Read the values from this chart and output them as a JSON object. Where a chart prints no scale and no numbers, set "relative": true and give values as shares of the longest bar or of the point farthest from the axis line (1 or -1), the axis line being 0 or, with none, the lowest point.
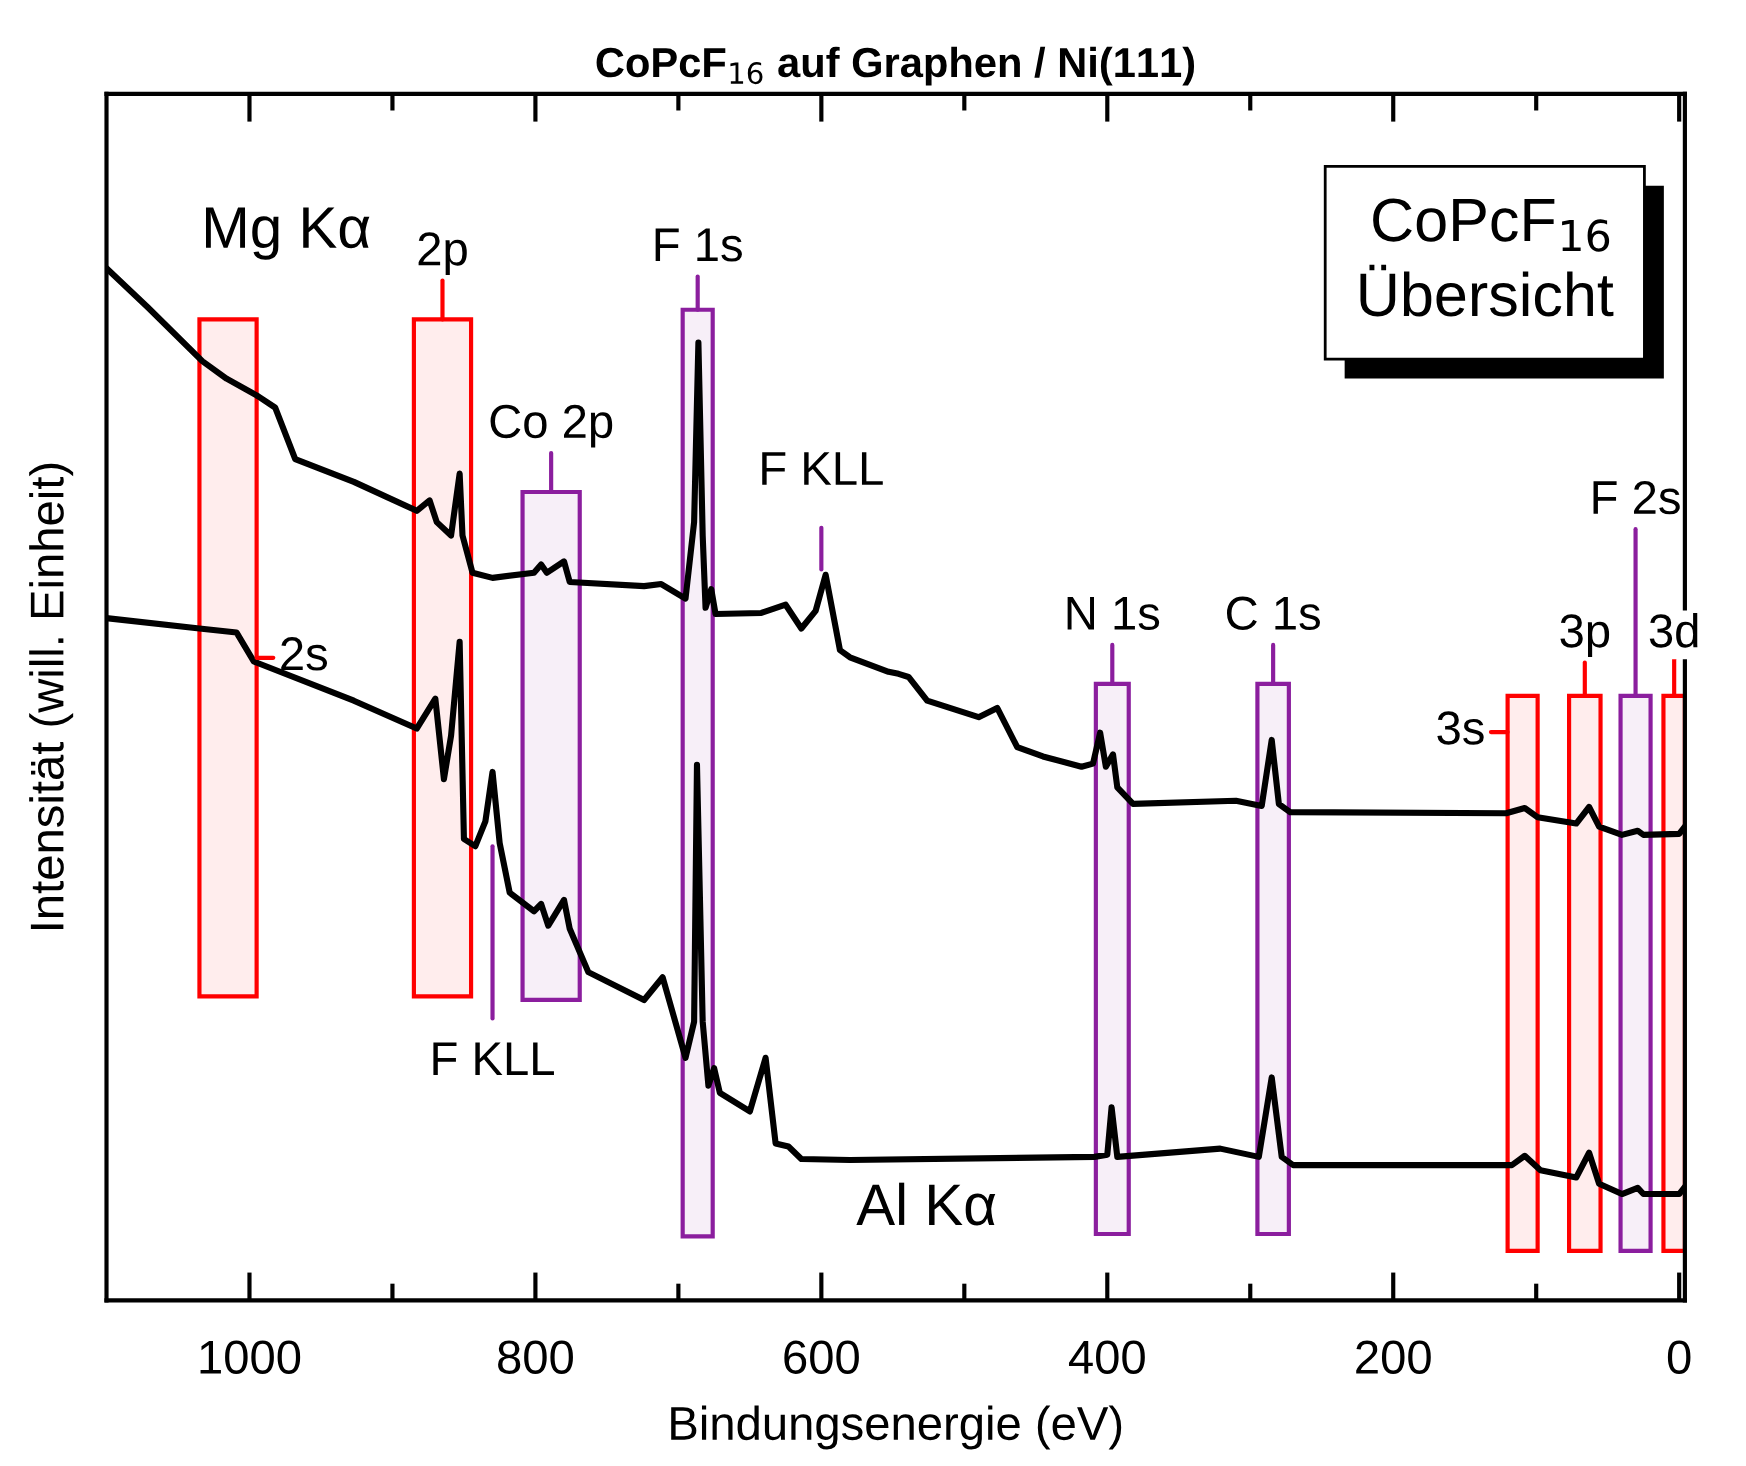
{
  "chart_data": {
    "type": "line",
    "title": "CoPcF$_{16}$ auf Graphen / Ni(111)",
    "xlabel": "Bindungsenergie (eV)",
    "ylabel": "Intensität (will. Einheit)",
    "relative": true,
    "legend": false,
    "grid": false,
    "marker": "none",
    "line_style": "solid",
    "xlim": [
      1100,
      -4
    ],
    "xticks": [
      1000,
      {
        "value": 900,
        "label": null
      },
      800,
      {
        "value": 700,
        "label": null
      },
      600,
      {
        "value": 500,
        "label": null
      },
      400,
      {
        "value": 300,
        "label": null
      },
      200,
      {
        "value": 100,
        "label": null
      },
      0
    ],
    "series": [
      {
        "name": "Mg Kα",
        "color": "#000000",
        "x": [
          1100,
          1071,
          1033,
          1016,
          994,
          982,
          968,
          927,
          883,
          874,
          869,
          859,
          853,
          851,
          844,
          830,
          801,
          796,
          792,
          780,
          776,
          724,
          712,
          695,
          689,
          686,
          683,
          681,
          677,
          674,
          642,
          625,
          614,
          604,
          597,
          587,
          580,
          553,
          546,
          539,
          526,
          490,
          477,
          463,
          445,
          418,
          410,
          405,
          401,
          396,
          393,
          382,
          310,
          292,
          285,
          280,
          272,
          121,
          108,
          99,
          72,
          63,
          56,
          40,
          29,
          25,
          0,
          -4
        ],
        "values": [
          1.0,
          0.962,
          0.91,
          0.893,
          0.876,
          0.865,
          0.815,
          0.793,
          0.765,
          0.775,
          0.754,
          0.741,
          0.801,
          0.741,
          0.705,
          0.7,
          0.705,
          0.713,
          0.705,
          0.716,
          0.696,
          0.692,
          0.694,
          0.68,
          0.754,
          0.928,
          0.741,
          0.671,
          0.689,
          0.665,
          0.666,
          0.674,
          0.651,
          0.668,
          0.703,
          0.63,
          0.623,
          0.609,
          0.607,
          0.604,
          0.581,
          0.565,
          0.574,
          0.536,
          0.527,
          0.517,
          0.52,
          0.55,
          0.517,
          0.529,
          0.497,
          0.481,
          0.484,
          0.479,
          0.543,
          0.481,
          0.473,
          0.472,
          0.477,
          0.468,
          0.462,
          0.478,
          0.459,
          0.451,
          0.455,
          0.451,
          0.452,
          0.459
        ]
      },
      {
        "name": "Al Kα",
        "color": "#000000",
        "x": [
          1100,
          1035,
          1009,
          997,
          927,
          883,
          870,
          864,
          859,
          853,
          850,
          842,
          835,
          830,
          825,
          818,
          801,
          796,
          791,
          780,
          776,
          763,
          724,
          711,
          695,
          689,
          687,
          683,
          679,
          675,
          671,
          650,
          639,
          632,
          623,
          614,
          580,
          409,
          400,
          397,
          393,
          321,
          294,
          285,
          278,
          270,
          117,
          108,
          97,
          72,
          63,
          56,
          40,
          29,
          25,
          0,
          -4
        ],
        "values": [
          0.661,
          0.651,
          0.647,
          0.619,
          0.581,
          0.554,
          0.583,
          0.505,
          0.547,
          0.638,
          0.447,
          0.44,
          0.464,
          0.512,
          0.443,
          0.395,
          0.377,
          0.384,
          0.363,
          0.388,
          0.36,
          0.318,
          0.291,
          0.313,
          0.235,
          0.27,
          0.519,
          0.27,
          0.208,
          0.225,
          0.201,
          0.183,
          0.235,
          0.152,
          0.149,
          0.137,
          0.136,
          0.139,
          0.141,
          0.187,
          0.139,
          0.147,
          0.139,
          0.216,
          0.139,
          0.131,
          0.131,
          0.14,
          0.126,
          0.119,
          0.143,
          0.113,
          0.103,
          0.109,
          0.103,
          0.103,
          0.11
        ]
      }
    ],
    "bands": [
      {
        "axis": "x",
        "from": 1035,
        "to": 995,
        "label": "2s",
        "color": "#ff0000"
      },
      {
        "axis": "x",
        "from": 885,
        "to": 845,
        "label": "2p",
        "color": "#ff0000"
      },
      {
        "axis": "x",
        "from": 809,
        "to": 769,
        "label": "Co 2p",
        "color": "#8b1e9e"
      },
      {
        "axis": "x",
        "from": 697,
        "to": 676,
        "label": "F 1s",
        "color": "#8b1e9e"
      },
      {
        "axis": "x",
        "from": 408,
        "to": 385,
        "label": "N 1s",
        "color": "#8b1e9e"
      },
      {
        "axis": "x",
        "from": 295,
        "to": 273,
        "label": "C 1s",
        "color": "#8b1e9e"
      },
      {
        "axis": "x",
        "from": 120,
        "to": 99,
        "label": "3s",
        "color": "#ff0000"
      },
      {
        "axis": "x",
        "from": 77,
        "to": 55,
        "label": "3p",
        "color": "#ff0000"
      },
      {
        "axis": "x",
        "from": 41,
        "to": 20,
        "label": "F 2s",
        "color": "#8b1e9e"
      },
      {
        "axis": "x",
        "from": 11,
        "to": -4,
        "label": "3d",
        "color": "#ff0000"
      }
    ],
    "annotations": [
      {
        "text": "F KLL",
        "x": 600,
        "y": 0.7
      },
      {
        "text": "F KLL",
        "x": 830,
        "y": 0.44
      },
      "CoPcF$_{16}$\nÜbersicht"
    ]
  }
}
